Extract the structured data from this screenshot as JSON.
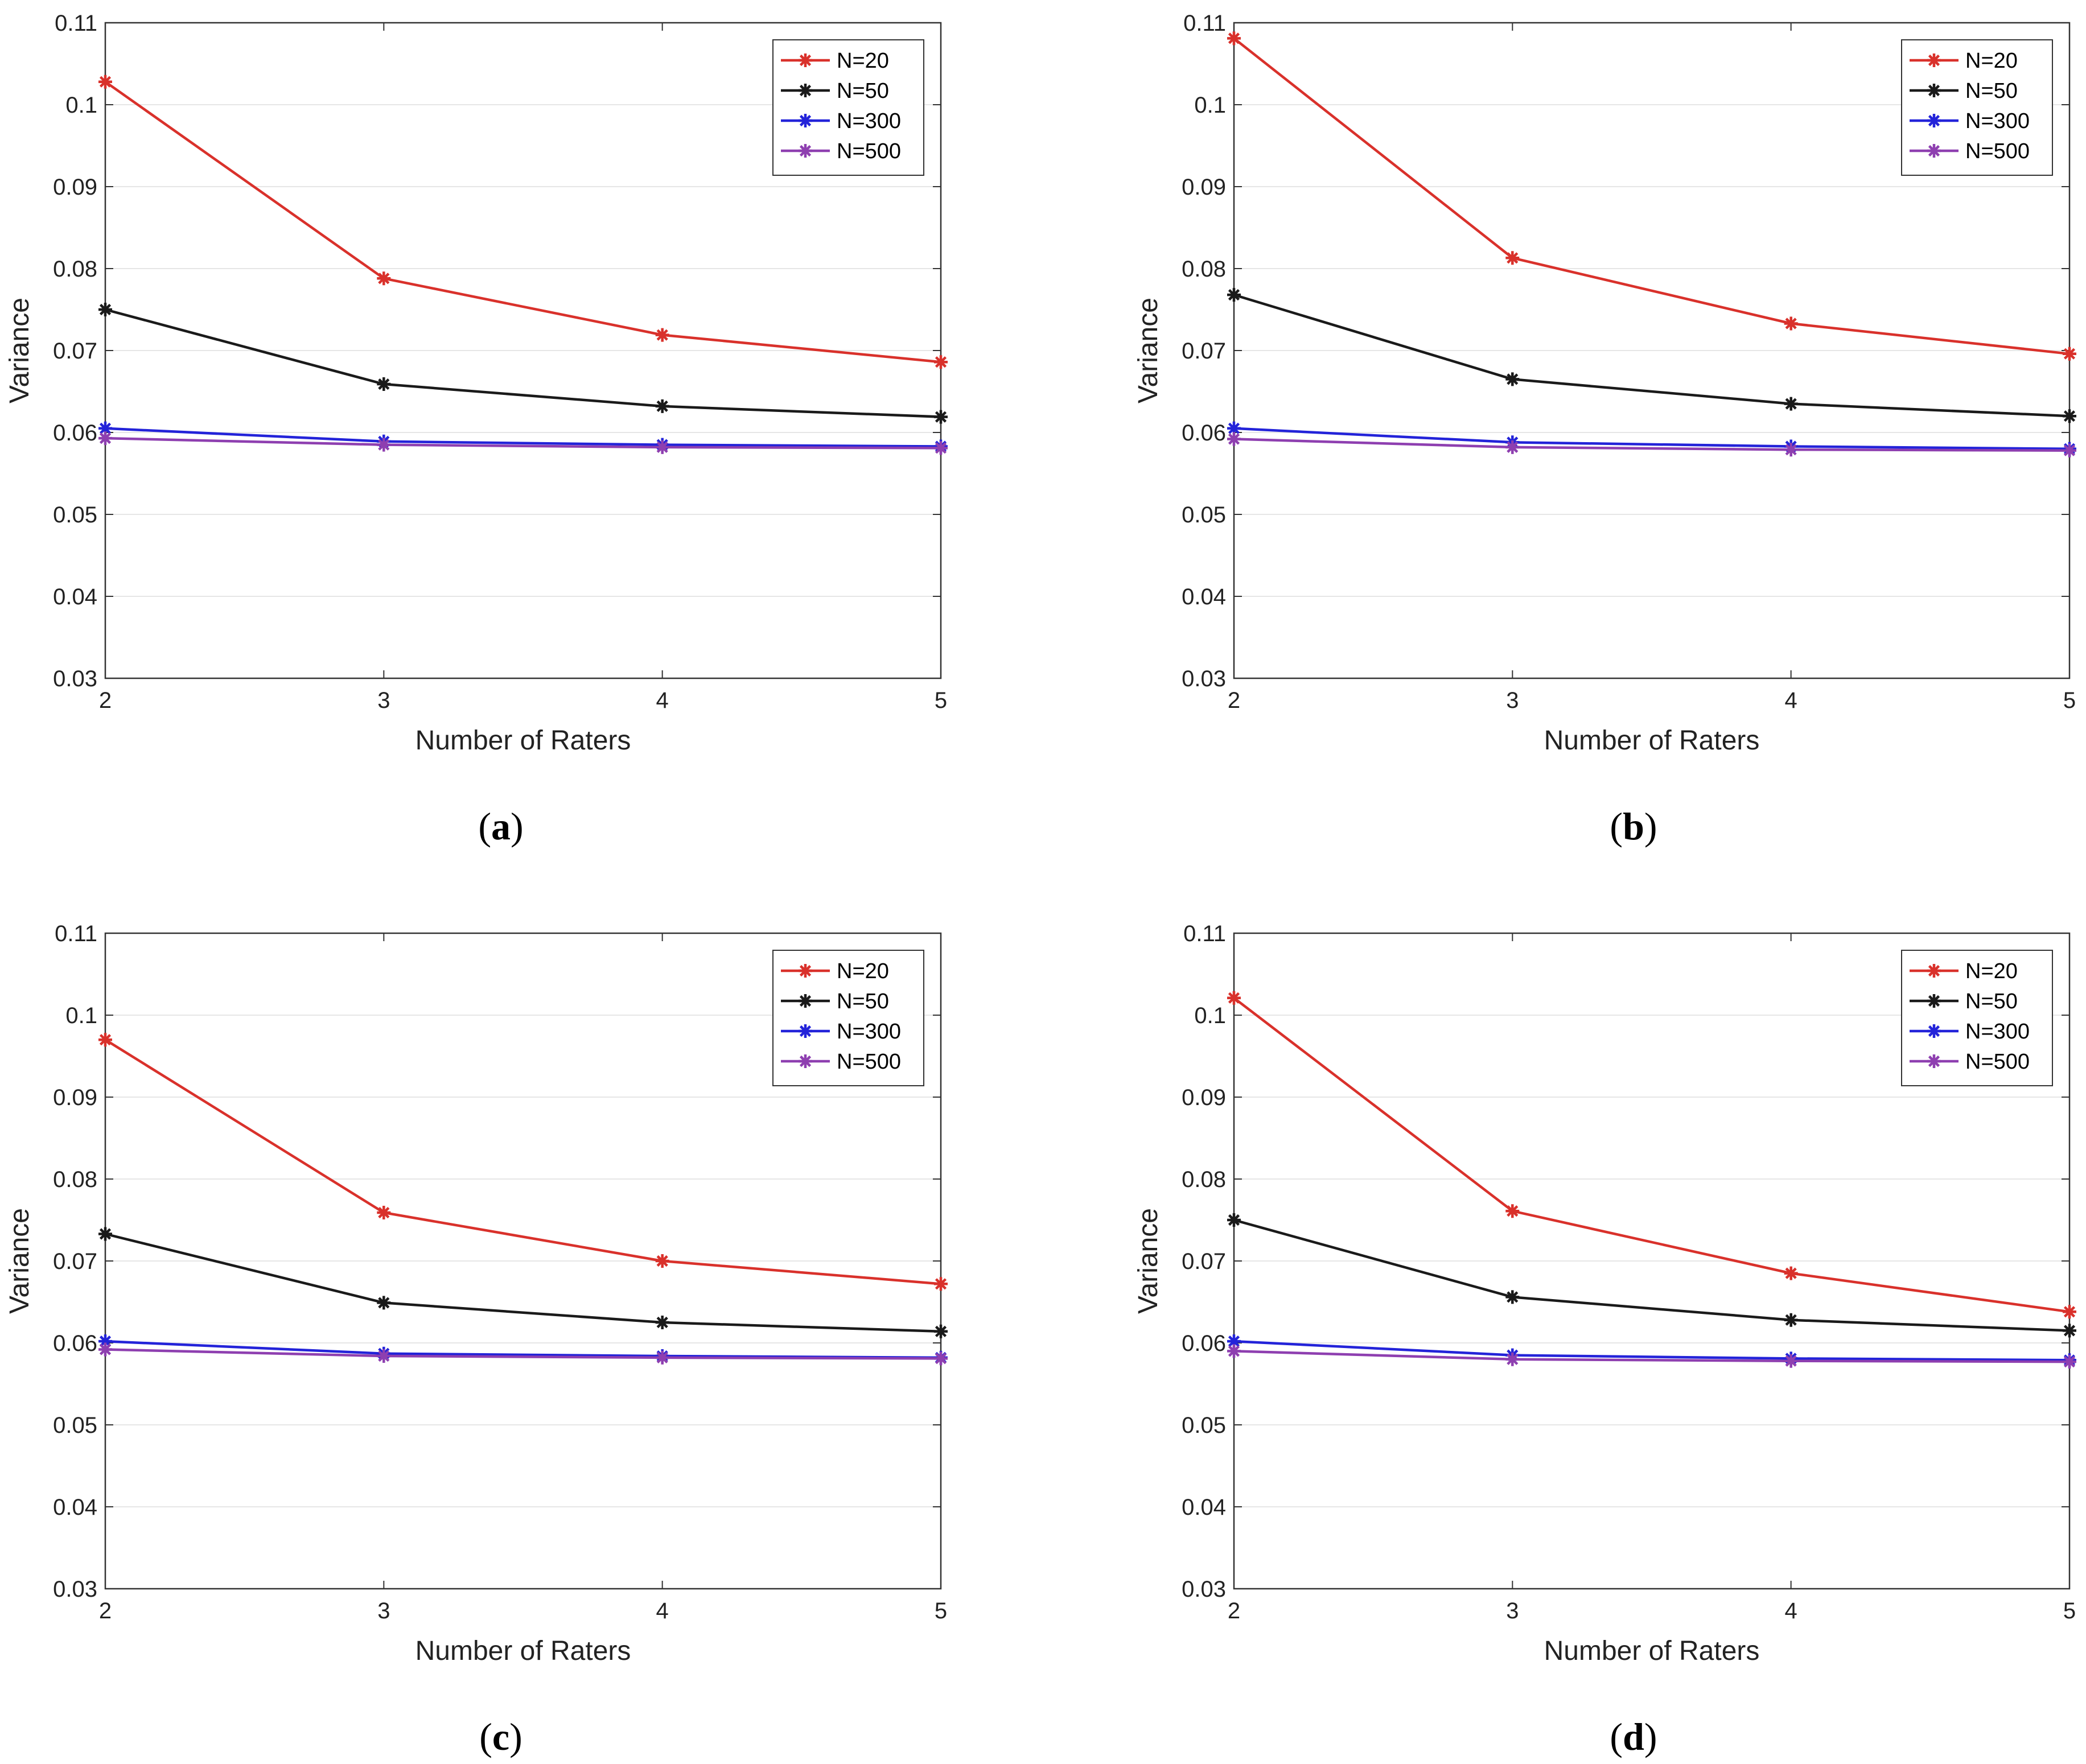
{
  "colors": {
    "N=20": "#d9312b",
    "N=50": "#1a1a1a",
    "N=300": "#2323d9",
    "N=500": "#8e3fb0"
  },
  "chart_data": [
    {
      "type": "line",
      "panel_label": "a",
      "xlabel": "Number of Raters",
      "ylabel": "Variance",
      "x": [
        2,
        3,
        4,
        5
      ],
      "xticks": [
        "2",
        "3",
        "4",
        "5"
      ],
      "yticks": [
        "0.03",
        "0.04",
        "0.05",
        "0.06",
        "0.07",
        "0.08",
        "0.09",
        "0.1",
        "0.11"
      ],
      "ylim": [
        0.03,
        0.11
      ],
      "xlim": [
        2,
        5
      ],
      "grid": true,
      "legend_position": "top-right",
      "series": [
        {
          "name": "N=20",
          "values": [
            0.1028,
            0.0788,
            0.0719,
            0.0686
          ]
        },
        {
          "name": "N=50",
          "values": [
            0.075,
            0.0659,
            0.0632,
            0.0619
          ]
        },
        {
          "name": "N=300",
          "values": [
            0.0605,
            0.0589,
            0.0585,
            0.0583
          ]
        },
        {
          "name": "N=500",
          "values": [
            0.0593,
            0.0585,
            0.0582,
            0.0581
          ]
        }
      ]
    },
    {
      "type": "line",
      "panel_label": "b",
      "xlabel": "Number of Raters",
      "ylabel": "Variance",
      "x": [
        2,
        3,
        4,
        5
      ],
      "xticks": [
        "2",
        "3",
        "4",
        "5"
      ],
      "yticks": [
        "0.03",
        "0.04",
        "0.05",
        "0.06",
        "0.07",
        "0.08",
        "0.09",
        "0.1",
        "0.11"
      ],
      "ylim": [
        0.03,
        0.11
      ],
      "xlim": [
        2,
        5
      ],
      "grid": true,
      "legend_position": "top-right",
      "series": [
        {
          "name": "N=20",
          "values": [
            0.1081,
            0.0813,
            0.0733,
            0.0696
          ]
        },
        {
          "name": "N=50",
          "values": [
            0.0768,
            0.0665,
            0.0635,
            0.062
          ]
        },
        {
          "name": "N=300",
          "values": [
            0.0605,
            0.0588,
            0.0583,
            0.058
          ]
        },
        {
          "name": "N=500",
          "values": [
            0.0592,
            0.0582,
            0.0579,
            0.0578
          ]
        }
      ]
    },
    {
      "type": "line",
      "panel_label": "c",
      "xlabel": "Number of Raters",
      "ylabel": "Variance",
      "x": [
        2,
        3,
        4,
        5
      ],
      "xticks": [
        "2",
        "3",
        "4",
        "5"
      ],
      "yticks": [
        "0.03",
        "0.04",
        "0.05",
        "0.06",
        "0.07",
        "0.08",
        "0.09",
        "0.1",
        "0.11"
      ],
      "ylim": [
        0.03,
        0.11
      ],
      "xlim": [
        2,
        5
      ],
      "grid": true,
      "legend_position": "top-right",
      "series": [
        {
          "name": "N=20",
          "values": [
            0.097,
            0.0759,
            0.07,
            0.0672
          ]
        },
        {
          "name": "N=50",
          "values": [
            0.0733,
            0.0649,
            0.0625,
            0.0614
          ]
        },
        {
          "name": "N=300",
          "values": [
            0.0602,
            0.0587,
            0.0584,
            0.0582
          ]
        },
        {
          "name": "N=500",
          "values": [
            0.0592,
            0.0584,
            0.0582,
            0.0581
          ]
        }
      ]
    },
    {
      "type": "line",
      "panel_label": "d",
      "xlabel": "Number of Raters",
      "ylabel": "Variance",
      "x": [
        2,
        3,
        4,
        5
      ],
      "xticks": [
        "2",
        "3",
        "4",
        "5"
      ],
      "yticks": [
        "0.03",
        "0.04",
        "0.05",
        "0.06",
        "0.07",
        "0.08",
        "0.09",
        "0.1",
        "0.11"
      ],
      "ylim": [
        0.03,
        0.11
      ],
      "xlim": [
        2,
        5
      ],
      "grid": true,
      "legend_position": "top-right",
      "series": [
        {
          "name": "N=20",
          "values": [
            0.1021,
            0.0761,
            0.0685,
            0.0638
          ]
        },
        {
          "name": "N=50",
          "values": [
            0.075,
            0.0656,
            0.0628,
            0.0615
          ]
        },
        {
          "name": "N=300",
          "values": [
            0.0602,
            0.0585,
            0.0581,
            0.0579
          ]
        },
        {
          "name": "N=500",
          "values": [
            0.059,
            0.058,
            0.0578,
            0.0577
          ]
        }
      ]
    }
  ]
}
